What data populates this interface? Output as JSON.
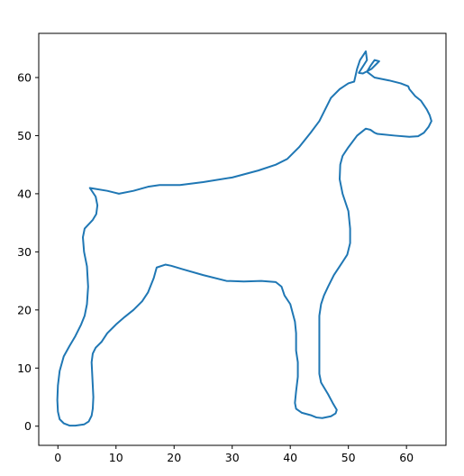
{
  "chart_data": {
    "type": "line",
    "title": "",
    "xlabel": "",
    "ylabel": "",
    "xlim": [
      -3.3,
      66.8
    ],
    "ylim": [
      -3.3,
      67.6
    ],
    "grid": false,
    "legend": "none",
    "x_ticks": [
      0,
      10,
      20,
      30,
      40,
      50,
      60
    ],
    "y_ticks": [
      0,
      10,
      20,
      30,
      40,
      50,
      60
    ],
    "x_tick_labels": [
      "0",
      "10",
      "20",
      "30",
      "40",
      "50",
      "60"
    ],
    "y_tick_labels": [
      "0",
      "10",
      "20",
      "30",
      "40",
      "50",
      "60"
    ],
    "series": [
      {
        "color": "#1f77b4",
        "closed": true,
        "points": [
          [
            5.5,
            41.0
          ],
          [
            8.5,
            40.5
          ],
          [
            10.5,
            40.0
          ],
          [
            13.0,
            40.5
          ],
          [
            15.5,
            41.2
          ],
          [
            17.5,
            41.5
          ],
          [
            21.0,
            41.5
          ],
          [
            25.0,
            42.0
          ],
          [
            30.0,
            42.8
          ],
          [
            34.5,
            44.0
          ],
          [
            37.5,
            45.0
          ],
          [
            39.5,
            46.0
          ],
          [
            41.5,
            48.0
          ],
          [
            43.5,
            50.5
          ],
          [
            45.0,
            52.5
          ],
          [
            46.0,
            54.5
          ],
          [
            47.0,
            56.5
          ],
          [
            48.5,
            58.0
          ],
          [
            50.0,
            59.0
          ],
          [
            51.0,
            59.3
          ],
          [
            51.5,
            61.5
          ],
          [
            52.0,
            63.0
          ],
          [
            53.0,
            64.5
          ],
          [
            53.2,
            63.0
          ],
          [
            51.8,
            60.8
          ],
          [
            52.5,
            60.7
          ],
          [
            54.0,
            61.5
          ],
          [
            55.0,
            62.5
          ],
          [
            55.3,
            62.8
          ],
          [
            54.5,
            63.0
          ],
          [
            53.8,
            62.0
          ],
          [
            53.2,
            61.0
          ],
          [
            54.5,
            60.0
          ],
          [
            57.0,
            59.5
          ],
          [
            59.0,
            59.0
          ],
          [
            60.3,
            58.5
          ],
          [
            60.5,
            58.0
          ],
          [
            61.5,
            56.8
          ],
          [
            62.5,
            56.0
          ],
          [
            63.5,
            54.5
          ],
          [
            64.0,
            53.5
          ],
          [
            64.3,
            52.5
          ],
          [
            63.8,
            51.5
          ],
          [
            63.0,
            50.5
          ],
          [
            62.0,
            49.9
          ],
          [
            60.5,
            49.8
          ],
          [
            58.0,
            50.0
          ],
          [
            55.0,
            50.3
          ],
          [
            54.5,
            50.5
          ],
          [
            53.8,
            51.0
          ],
          [
            53.0,
            51.2
          ],
          [
            51.5,
            50.0
          ],
          [
            50.0,
            48.0
          ],
          [
            49.0,
            46.5
          ],
          [
            48.6,
            45.0
          ],
          [
            48.5,
            42.5
          ],
          [
            49.0,
            40.0
          ],
          [
            50.0,
            37.0
          ],
          [
            50.3,
            34.0
          ],
          [
            50.3,
            31.5
          ],
          [
            49.8,
            29.5
          ],
          [
            48.5,
            27.5
          ],
          [
            47.5,
            26.0
          ],
          [
            46.5,
            24.0
          ],
          [
            45.8,
            22.5
          ],
          [
            45.3,
            21.0
          ],
          [
            45.0,
            19.0
          ],
          [
            45.0,
            16.0
          ],
          [
            45.0,
            12.0
          ],
          [
            45.0,
            9.0
          ],
          [
            45.3,
            7.5
          ],
          [
            46.5,
            5.5
          ],
          [
            47.3,
            4.0
          ],
          [
            48.0,
            2.8
          ],
          [
            47.8,
            2.2
          ],
          [
            47.0,
            1.7
          ],
          [
            45.5,
            1.4
          ],
          [
            44.5,
            1.5
          ],
          [
            43.5,
            1.9
          ],
          [
            42.0,
            2.3
          ],
          [
            41.0,
            3.0
          ],
          [
            40.8,
            4.0
          ],
          [
            41.0,
            6.0
          ],
          [
            41.3,
            8.5
          ],
          [
            41.3,
            11.0
          ],
          [
            41.0,
            13.0
          ],
          [
            41.0,
            16.0
          ],
          [
            40.8,
            18.0
          ],
          [
            40.0,
            21.0
          ],
          [
            39.0,
            22.5
          ],
          [
            38.5,
            24.0
          ],
          [
            37.5,
            24.8
          ],
          [
            35.0,
            25.0
          ],
          [
            32.0,
            24.9
          ],
          [
            29.0,
            25.0
          ],
          [
            25.0,
            26.0
          ],
          [
            21.5,
            27.0
          ],
          [
            19.5,
            27.6
          ],
          [
            18.5,
            27.8
          ],
          [
            17.0,
            27.3
          ],
          [
            16.5,
            25.5
          ],
          [
            15.5,
            23.0
          ],
          [
            14.5,
            21.5
          ],
          [
            13.0,
            20.0
          ],
          [
            11.5,
            18.8
          ],
          [
            10.0,
            17.5
          ],
          [
            8.5,
            16.0
          ],
          [
            7.5,
            14.5
          ],
          [
            6.5,
            13.5
          ],
          [
            6.0,
            12.5
          ],
          [
            5.8,
            11.0
          ],
          [
            5.9,
            9.0
          ],
          [
            6.0,
            7.0
          ],
          [
            6.1,
            5.0
          ],
          [
            6.0,
            3.0
          ],
          [
            5.8,
            1.8
          ],
          [
            5.3,
            0.8
          ],
          [
            4.5,
            0.3
          ],
          [
            3.0,
            0.1
          ],
          [
            2.0,
            0.1
          ],
          [
            1.0,
            0.5
          ],
          [
            0.3,
            1.2
          ],
          [
            0.0,
            2.5
          ],
          [
            -0.1,
            4.5
          ],
          [
            0.0,
            7.0
          ],
          [
            0.3,
            9.5
          ],
          [
            1.0,
            12.0
          ],
          [
            2.0,
            13.8
          ],
          [
            3.0,
            15.5
          ],
          [
            4.0,
            17.5
          ],
          [
            4.6,
            19.0
          ],
          [
            5.0,
            21.0
          ],
          [
            5.2,
            24.0
          ],
          [
            5.0,
            27.5
          ],
          [
            4.5,
            30.0
          ],
          [
            4.3,
            32.5
          ],
          [
            4.6,
            34.0
          ],
          [
            6.0,
            35.5
          ],
          [
            6.6,
            36.5
          ],
          [
            6.8,
            38.0
          ],
          [
            6.5,
            39.5
          ],
          [
            5.5,
            41.0
          ]
        ]
      }
    ]
  }
}
